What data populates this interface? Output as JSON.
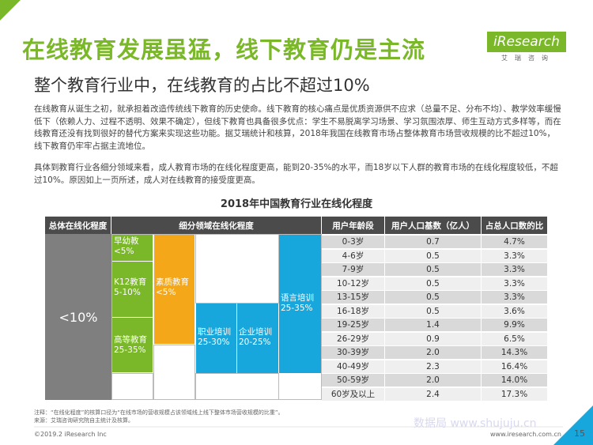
{
  "header": {
    "title": "在线教育发展虽猛，线下教育仍是主流",
    "subtitle": "整个教育行业中，在线教育的占比不超过10%",
    "logo_text": "iResearch",
    "logo_sub": "艾瑞咨询"
  },
  "body": {
    "paragraph1": "在线教育从诞生之初，就承担着改造传统线下教育的历史使命。线下教育的核心痛点是优质资源供不应求（总量不足、分布不均）、教学效率缓慢低下（依赖人力、过程不透明、效果不确定），但线下教育也具备很多优点：学生不易脱离学习场景、学习氛围浓厚、师生互动方式多样等，而在线教育还没有找到很好的替代方案来实现这些功能。据艾瑞统计和核算，2018年我国在线教育市场占整体教育市场营收规模的比不超过10%，线下教育仍牢牢占据主流地位。",
    "paragraph2": "具体到教育行业各细分领域来看，成人教育市场的在线化程度更高，能到20-35%的水平，而18岁以下人群的教育市场的在线化程度较低，不超过10%。原因如上一页所述，成人对在线教育的接受度更高。"
  },
  "chart_data": {
    "type": "table",
    "title": "2018年中国教育行业在线化程度",
    "headers": [
      "总体在线化程度",
      "细分领域在线化程度",
      "用户年龄段",
      "用户人口基数（亿人）",
      "占总人口数的比"
    ],
    "overall": "<10%",
    "segments": [
      {
        "name": "早幼教",
        "value": "<5%"
      },
      {
        "name": "K12教育",
        "value": "5-10%"
      },
      {
        "name": "高等教育",
        "value": "25-35%"
      },
      {
        "name": "素质教育",
        "value": "<5%"
      },
      {
        "name": "职业培训",
        "value": "25-30%"
      },
      {
        "name": "企业培训",
        "value": "20-25%"
      },
      {
        "name": "语言培训",
        "value": "25-35%"
      }
    ],
    "rows": [
      {
        "age": "0-3岁",
        "pop": "0.7",
        "pct": "4.7%"
      },
      {
        "age": "4-6岁",
        "pop": "0.5",
        "pct": "3.3%"
      },
      {
        "age": "7-9岁",
        "pop": "0.5",
        "pct": "3.3%"
      },
      {
        "age": "10-12岁",
        "pop": "0.5",
        "pct": "3.3%"
      },
      {
        "age": "13-15岁",
        "pop": "0.5",
        "pct": "3.3%"
      },
      {
        "age": "16-18岁",
        "pop": "0.5",
        "pct": "3.6%"
      },
      {
        "age": "19-25岁",
        "pop": "1.4",
        "pct": "9.9%"
      },
      {
        "age": "26-29岁",
        "pop": "0.9",
        "pct": "6.5%"
      },
      {
        "age": "30-39岁",
        "pop": "2.0",
        "pct": "14.3%"
      },
      {
        "age": "40-49岁",
        "pop": "2.3",
        "pct": "16.4%"
      },
      {
        "age": "50-59岁",
        "pop": "2.0",
        "pct": "14.0%"
      },
      {
        "age": "60岁及以上",
        "pop": "2.4",
        "pct": "17.3%"
      }
    ]
  },
  "notes": {
    "note": "注释：“在线化程度”的核算口径为“在线市场的营收规模占该领域线上线下整体市场营收规模的比重”。",
    "source": "来源：艾瑞咨询研究院自主统计及核算。"
  },
  "footer": {
    "copyright": "©2019.2 iResearch Inc",
    "website": "www.iresearch.com.cn",
    "page": "15",
    "watermark": "数据局 www.shujuju.cn"
  },
  "colors": {
    "green": "#7ab82a",
    "orange": "#f5a71a",
    "blue": "#17a7dc",
    "header_grey": "#4b4b4b",
    "overall_grey": "#7f7f7f"
  }
}
